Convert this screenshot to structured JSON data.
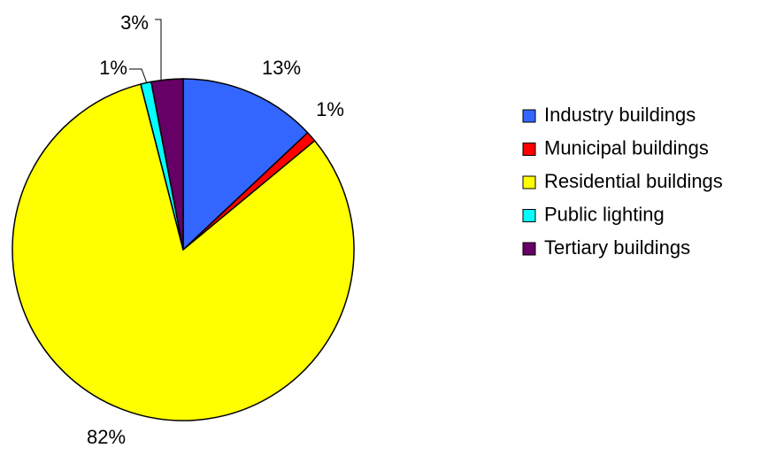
{
  "chart_data": {
    "type": "pie",
    "categories": [
      "Industry buildings",
      "Municipal buildings",
      "Residential buildings",
      "Public lighting",
      "Tertiary buildings"
    ],
    "values": [
      13,
      1,
      82,
      1,
      3
    ],
    "value_labels": [
      "13%",
      "1%",
      "82%",
      "1%",
      "3%"
    ],
    "colors": [
      "#3366ff",
      "#ff0000",
      "#ffff00",
      "#00ffff",
      "#660066"
    ],
    "legend": "right"
  }
}
